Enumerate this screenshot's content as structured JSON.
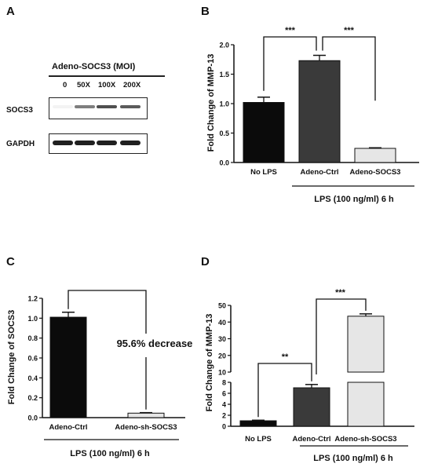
{
  "panels": {
    "A": "A",
    "B": "B",
    "C": "C",
    "D": "D"
  },
  "blot": {
    "title": "Adeno-SOCS3 (MOI)",
    "lanes": [
      "0",
      "50X",
      "100X",
      "200X"
    ],
    "rows": [
      {
        "label": "SOCS3",
        "intensity": [
          0.05,
          0.55,
          0.75,
          0.7
        ]
      },
      {
        "label": "GAPDH",
        "intensity": [
          0.95,
          0.95,
          0.95,
          0.95
        ]
      }
    ]
  },
  "chart_data": [
    {
      "panel": "B",
      "type": "bar",
      "ylabel": "Fold Change of MMP-13",
      "categories": [
        "No LPS",
        "Adeno-Ctrl",
        "Adeno-SOCS3"
      ],
      "values": [
        1.02,
        1.73,
        0.24
      ],
      "errors": [
        0.09,
        0.09,
        0.01
      ],
      "colors": [
        "#0b0b0b",
        "#3a3a3a",
        "#e6e6e6"
      ],
      "ylim": [
        0,
        2.0
      ],
      "yticks": [
        0.0,
        0.5,
        1.0,
        1.5,
        2.0
      ],
      "ytick_labels": [
        "0.0",
        "0.5",
        "1.0",
        "1.5",
        "2.0"
      ],
      "group_label": "LPS (100 ng/ml)  6 h",
      "significance": [
        {
          "from": 0,
          "to": 1,
          "label": "***"
        },
        {
          "from": 1,
          "to": 2,
          "label": "***"
        }
      ]
    },
    {
      "panel": "C",
      "type": "bar",
      "ylabel": "Fold Change of SOCS3",
      "categories": [
        "Adeno-Ctrl",
        "Adeno-sh-SOCS3"
      ],
      "values": [
        1.01,
        0.045
      ],
      "errors": [
        0.05,
        0.005
      ],
      "colors": [
        "#0b0b0b",
        "#e6e6e6"
      ],
      "ylim": [
        0,
        1.2
      ],
      "yticks": [
        0.0,
        0.2,
        0.4,
        0.6,
        0.8,
        1.0,
        1.2
      ],
      "ytick_labels": [
        "0.0",
        "0.2",
        "0.4",
        "0.6",
        "0.8",
        "1.0",
        "1.2"
      ],
      "group_label": "LPS (100 ng/ml)  6 h",
      "annotation": "95.6% decrease"
    },
    {
      "panel": "D",
      "type": "bar",
      "ylabel": "Fold Change of MMP-13",
      "categories": [
        "No LPS",
        "Adeno-Ctrl",
        "Adeno-sh-SOCS3"
      ],
      "values": [
        1.0,
        7.0,
        43.5
      ],
      "errors": [
        0.1,
        0.6,
        1.4
      ],
      "colors": [
        "#0b0b0b",
        "#3a3a3a",
        "#e6e6e6"
      ],
      "axis_break": {
        "lower": [
          0,
          8
        ],
        "upper": [
          10,
          50
        ]
      },
      "yticks_lower": [
        0,
        2,
        4,
        6,
        8
      ],
      "ytick_labels_lower": [
        "0",
        "2",
        "4",
        "6",
        "8"
      ],
      "yticks_upper": [
        10,
        20,
        30,
        40,
        50
      ],
      "ytick_labels_upper": [
        "10",
        "20",
        "30",
        "40",
        "50"
      ],
      "group_label": "LPS (100 ng/ml)  6 h",
      "significance": [
        {
          "from": 0,
          "to": 1,
          "label": "**"
        },
        {
          "from": 1,
          "to": 2,
          "label": "***"
        }
      ]
    }
  ]
}
